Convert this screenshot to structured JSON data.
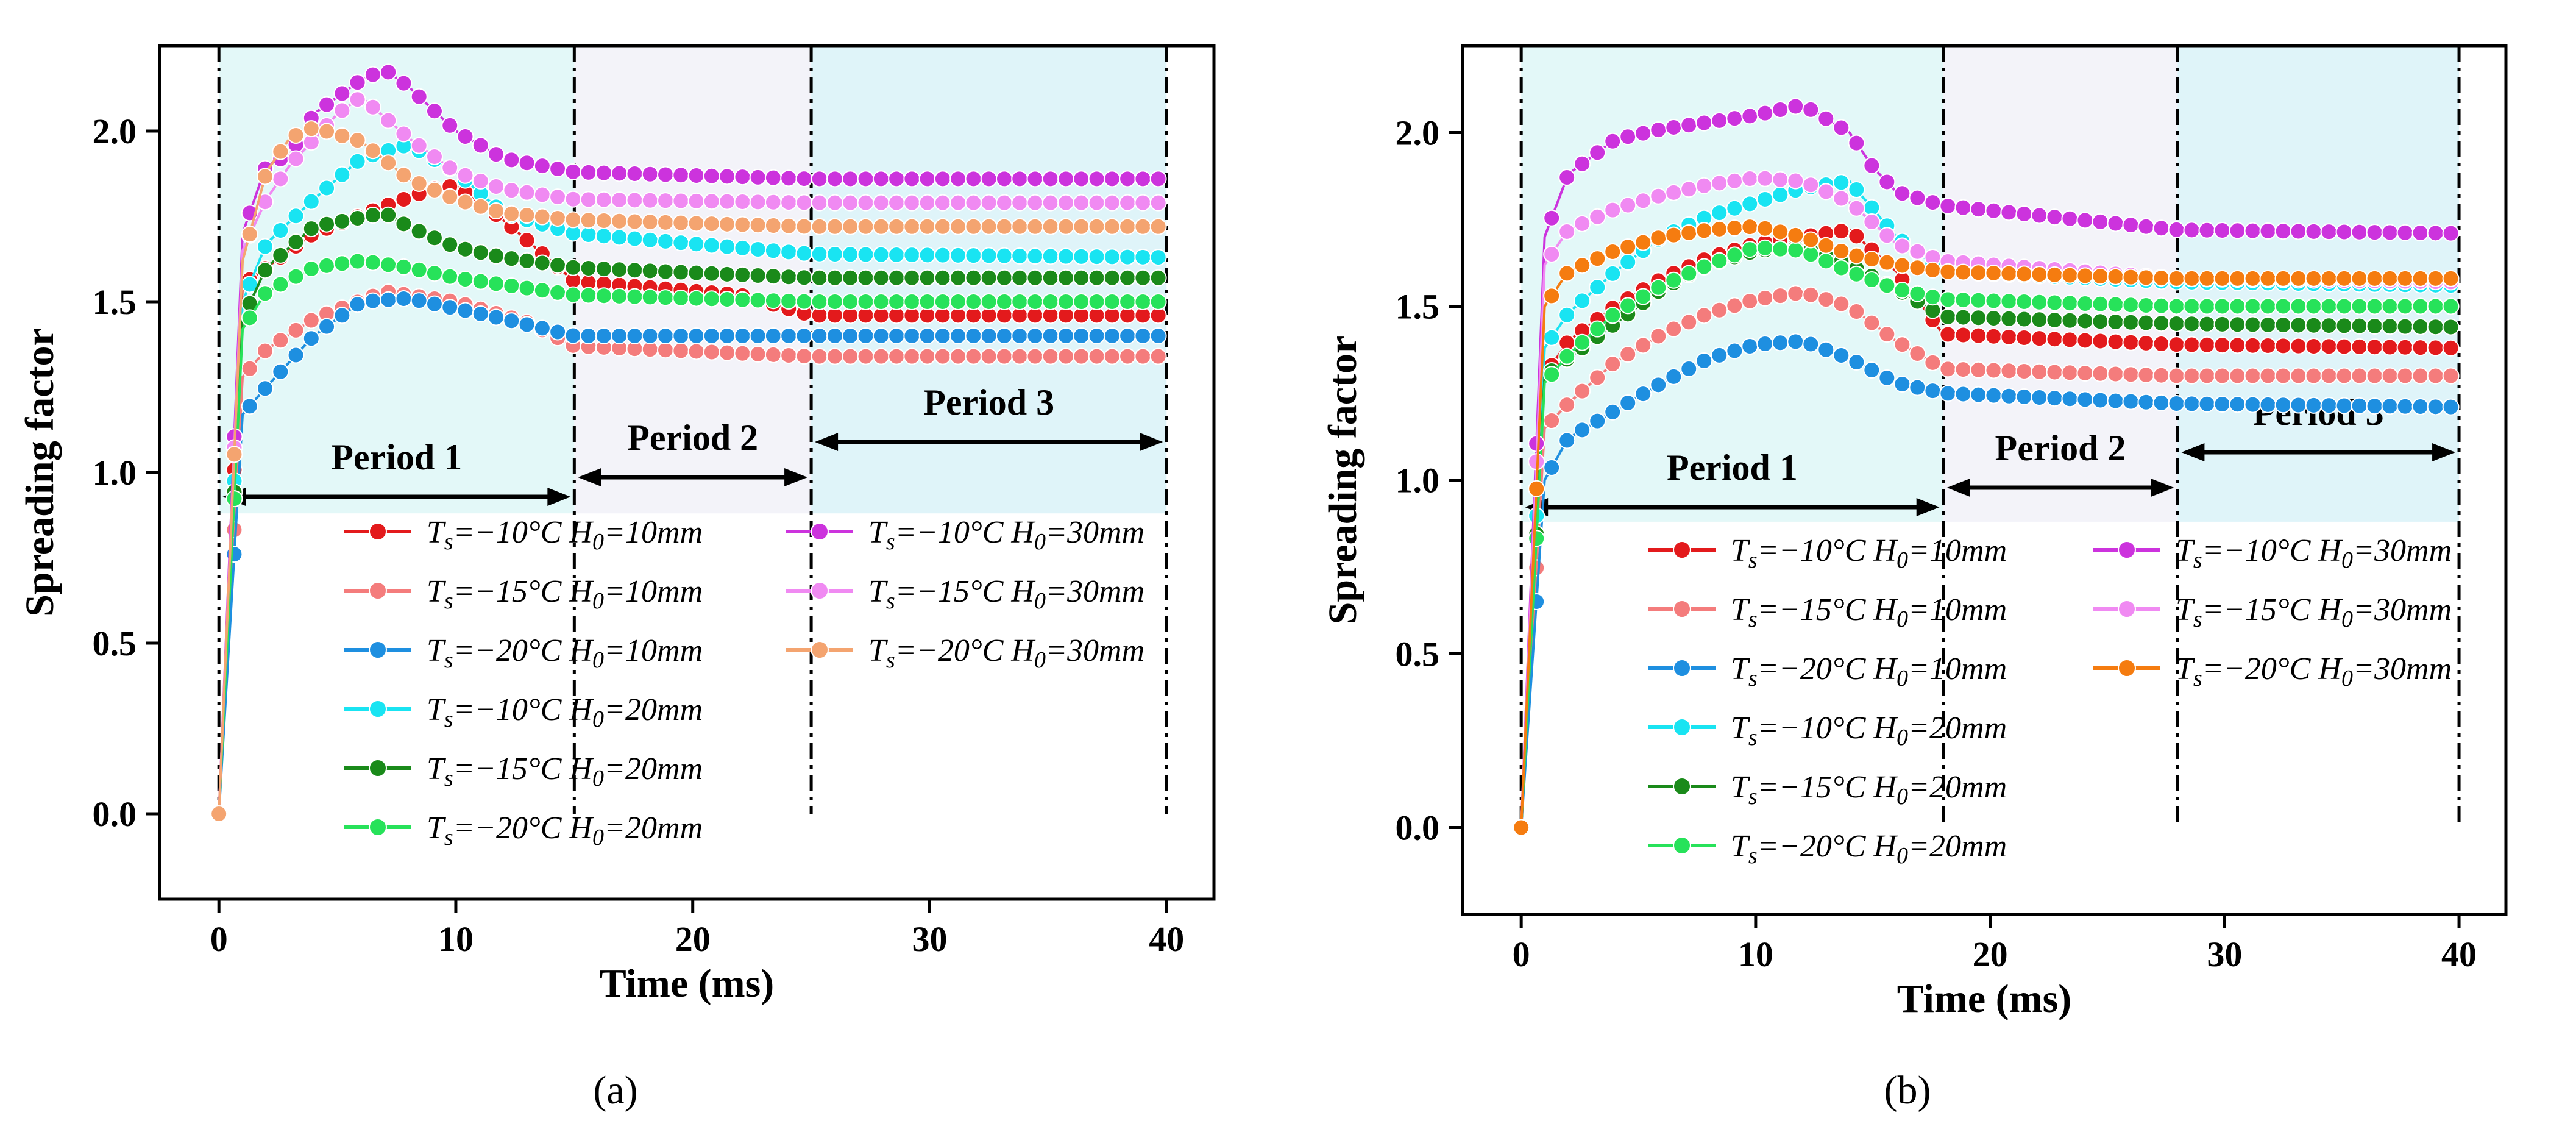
{
  "chart_data": [
    {
      "type": "line",
      "panel_label": "(a)",
      "xlabel": "Time (ms)",
      "ylabel": "Spreading factor",
      "xlim": [
        -2.5,
        42
      ],
      "ylim": [
        -0.25,
        2.25
      ],
      "xticks": [
        0,
        10,
        20,
        30,
        40
      ],
      "yticks": [
        0.0,
        0.5,
        1.0,
        1.5,
        2.0
      ],
      "ytick_labels": [
        "0.0",
        "0.5",
        "1.0",
        "1.5",
        "2.0"
      ],
      "periods": [
        {
          "label": "Period 1",
          "start": 0,
          "end": 15,
          "color": "#e3f8f8"
        },
        {
          "label": "Period 2",
          "start": 15,
          "end": 25,
          "color": "#f3f3f9"
        },
        {
          "label": "Period 3",
          "start": 25,
          "end": 40,
          "color": "#dff4f9"
        }
      ],
      "series": [
        {
          "name": "Ts=-10°C H0=10mm",
          "ts": "-10",
          "h0": "10",
          "color": "#e31a1c",
          "x": [
            0,
            1,
            2,
            4,
            7,
            9,
            10,
            12,
            15,
            22,
            25,
            40
          ],
          "y": [
            0,
            1.55,
            1.6,
            1.7,
            1.78,
            1.83,
            1.84,
            1.74,
            1.56,
            1.52,
            1.46,
            1.46
          ]
        },
        {
          "name": "Ts=-15°C H0=10mm",
          "ts": "-15",
          "h0": "10",
          "color": "#f47c7c",
          "x": [
            0,
            1,
            2,
            4,
            7,
            10,
            13,
            15,
            25,
            40
          ],
          "y": [
            0,
            1.28,
            1.36,
            1.45,
            1.53,
            1.5,
            1.44,
            1.37,
            1.34,
            1.34
          ]
        },
        {
          "name": "Ts=-20°C H0=10mm",
          "ts": "-20",
          "h0": "10",
          "color": "#1e8fe0",
          "x": [
            0,
            1,
            2,
            4,
            6,
            8,
            10,
            12,
            15,
            25,
            40
          ],
          "y": [
            0,
            1.17,
            1.25,
            1.4,
            1.5,
            1.51,
            1.48,
            1.45,
            1.4,
            1.4,
            1.4
          ]
        },
        {
          "name": "Ts=-10°C H0=20mm",
          "ts": "-10",
          "h0": "20",
          "color": "#19e4f2",
          "x": [
            0,
            1,
            2,
            4,
            6,
            8,
            10,
            12,
            15,
            25,
            40
          ],
          "y": [
            0,
            1.5,
            1.67,
            1.8,
            1.92,
            1.96,
            1.88,
            1.76,
            1.7,
            1.64,
            1.63
          ]
        },
        {
          "name": "Ts=-15°C H0=20mm",
          "ts": "-15",
          "h0": "20",
          "color": "#1a8a1a",
          "x": [
            0,
            1,
            2,
            4,
            7,
            8,
            10,
            12,
            15,
            25,
            40
          ],
          "y": [
            0,
            1.45,
            1.6,
            1.72,
            1.76,
            1.72,
            1.66,
            1.63,
            1.6,
            1.57,
            1.57
          ]
        },
        {
          "name": "Ts=-20°C H0=20mm",
          "ts": "-20",
          "h0": "20",
          "color": "#27e25a",
          "x": [
            0,
            1,
            2,
            4,
            6,
            8,
            10,
            12,
            15,
            25,
            40
          ],
          "y": [
            0,
            1.42,
            1.53,
            1.6,
            1.62,
            1.6,
            1.57,
            1.55,
            1.52,
            1.5,
            1.5
          ]
        },
        {
          "name": "Ts=-10°C H0=30mm",
          "ts": "-10",
          "h0": "30",
          "color": "#cc33dd",
          "x": [
            0,
            1,
            2,
            3,
            4,
            6,
            7,
            8,
            10,
            12,
            15,
            25,
            40
          ],
          "y": [
            0,
            1.7,
            1.9,
            1.93,
            2.05,
            2.15,
            2.18,
            2.13,
            2.0,
            1.92,
            1.88,
            1.86,
            1.86
          ]
        },
        {
          "name": "Ts=-15°C H0=30mm",
          "ts": "-15",
          "h0": "30",
          "color": "#f08af2",
          "x": [
            0,
            1,
            2,
            3,
            5,
            6,
            8,
            10,
            12,
            15,
            25,
            40
          ],
          "y": [
            0,
            1.65,
            1.8,
            1.9,
            2.05,
            2.1,
            1.98,
            1.88,
            1.83,
            1.8,
            1.79,
            1.79
          ]
        },
        {
          "name": "Ts=-20°C H0=30mm",
          "ts": "-20",
          "h0": "30",
          "color": "#f4a470",
          "x": [
            0,
            1,
            2,
            3,
            4,
            6,
            8,
            10,
            12,
            15,
            25,
            40
          ],
          "y": [
            0,
            1.62,
            1.88,
            1.98,
            2.01,
            1.97,
            1.86,
            1.8,
            1.76,
            1.74,
            1.72,
            1.72
          ]
        }
      ]
    },
    {
      "type": "line",
      "panel_label": "(b)",
      "xlabel": "Time (ms)",
      "ylabel": "Spreading factor",
      "xlim": [
        -2.5,
        42
      ],
      "ylim": [
        -0.25,
        2.25
      ],
      "xticks": [
        0,
        10,
        20,
        30,
        40
      ],
      "yticks": [
        0.0,
        0.5,
        1.0,
        1.5,
        2.0
      ],
      "ytick_labels": [
        "0.0",
        "0.5",
        "1.0",
        "1.5",
        "2.0"
      ],
      "periods": [
        {
          "label": "Period 1",
          "start": 0,
          "end": 18,
          "color": "#e3f8f8"
        },
        {
          "label": "Period 2",
          "start": 18,
          "end": 28,
          "color": "#f3f3f9"
        },
        {
          "label": "Period 3",
          "start": 28,
          "end": 40,
          "color": "#dff4f9"
        }
      ],
      "series": [
        {
          "name": "Ts=-10°C H0=10mm",
          "ts": "-10",
          "h0": "10",
          "color": "#e31a1c",
          "x": [
            0,
            1,
            2,
            4,
            6,
            8,
            10,
            12,
            14,
            16,
            18,
            28,
            40
          ],
          "y": [
            0,
            1.3,
            1.4,
            1.5,
            1.58,
            1.64,
            1.68,
            1.7,
            1.72,
            1.6,
            1.42,
            1.39,
            1.38
          ]
        },
        {
          "name": "Ts=-15°C H0=10mm",
          "ts": "-15",
          "h0": "10",
          "color": "#f47c7c",
          "x": [
            0,
            1,
            2,
            4,
            6,
            8,
            10,
            12,
            14,
            16,
            18,
            28,
            40
          ],
          "y": [
            0,
            1.15,
            1.22,
            1.34,
            1.42,
            1.48,
            1.52,
            1.54,
            1.5,
            1.4,
            1.32,
            1.3,
            1.3
          ]
        },
        {
          "name": "Ts=-20°C H0=10mm",
          "ts": "-20",
          "h0": "10",
          "color": "#1e8fe0",
          "x": [
            0,
            1,
            2,
            4,
            6,
            8,
            10,
            12,
            14,
            16,
            18,
            28,
            40
          ],
          "y": [
            0,
            1.0,
            1.12,
            1.2,
            1.28,
            1.35,
            1.39,
            1.4,
            1.35,
            1.28,
            1.25,
            1.22,
            1.21
          ]
        },
        {
          "name": "Ts=-10°C H0=20mm",
          "ts": "-10",
          "h0": "20",
          "color": "#19e4f2",
          "x": [
            0,
            1,
            2,
            4,
            6,
            8,
            10,
            12,
            14,
            16,
            18,
            28,
            40
          ],
          "y": [
            0,
            1.38,
            1.48,
            1.6,
            1.7,
            1.76,
            1.8,
            1.84,
            1.86,
            1.7,
            1.6,
            1.57,
            1.56
          ]
        },
        {
          "name": "Ts=-15°C H0=20mm",
          "ts": "-15",
          "h0": "20",
          "color": "#1a8a1a",
          "x": [
            0,
            1,
            2,
            4,
            6,
            8,
            10,
            12,
            14,
            16,
            18,
            28,
            40
          ],
          "y": [
            0,
            1.3,
            1.35,
            1.45,
            1.55,
            1.62,
            1.66,
            1.67,
            1.62,
            1.55,
            1.47,
            1.45,
            1.44
          ]
        },
        {
          "name": "Ts=-20°C H0=20mm",
          "ts": "-20",
          "h0": "20",
          "color": "#27e25a",
          "x": [
            0,
            1,
            2,
            4,
            6,
            8,
            10,
            12,
            14,
            16,
            18,
            28,
            40
          ],
          "y": [
            0,
            1.28,
            1.36,
            1.48,
            1.56,
            1.62,
            1.67,
            1.66,
            1.6,
            1.55,
            1.52,
            1.5,
            1.5
          ]
        },
        {
          "name": "Ts=-10°C H0=30mm",
          "ts": "-10",
          "h0": "30",
          "color": "#cc33dd",
          "x": [
            0,
            1,
            2,
            4,
            6,
            8,
            10,
            12,
            14,
            15,
            16,
            18,
            28,
            40
          ],
          "y": [
            0,
            1.7,
            1.88,
            1.98,
            2.01,
            2.03,
            2.05,
            2.08,
            2.0,
            1.9,
            1.83,
            1.79,
            1.72,
            1.71
          ]
        },
        {
          "name": "Ts=-15°C H0=30mm",
          "ts": "-15",
          "h0": "30",
          "color": "#f08af2",
          "x": [
            0,
            1,
            2,
            4,
            6,
            8,
            10,
            12,
            14,
            16,
            18,
            28,
            40
          ],
          "y": [
            0,
            1.62,
            1.72,
            1.78,
            1.82,
            1.85,
            1.87,
            1.86,
            1.8,
            1.68,
            1.63,
            1.58,
            1.57
          ]
        },
        {
          "name": "Ts=-20°C H0=30mm",
          "ts": "-20",
          "h0": "30",
          "color": "#f57c10",
          "x": [
            0,
            1,
            2,
            4,
            6,
            8,
            10,
            12,
            14,
            16,
            18,
            28,
            40
          ],
          "y": [
            0,
            1.5,
            1.6,
            1.66,
            1.7,
            1.72,
            1.73,
            1.7,
            1.65,
            1.62,
            1.6,
            1.58,
            1.58
          ]
        }
      ]
    }
  ]
}
